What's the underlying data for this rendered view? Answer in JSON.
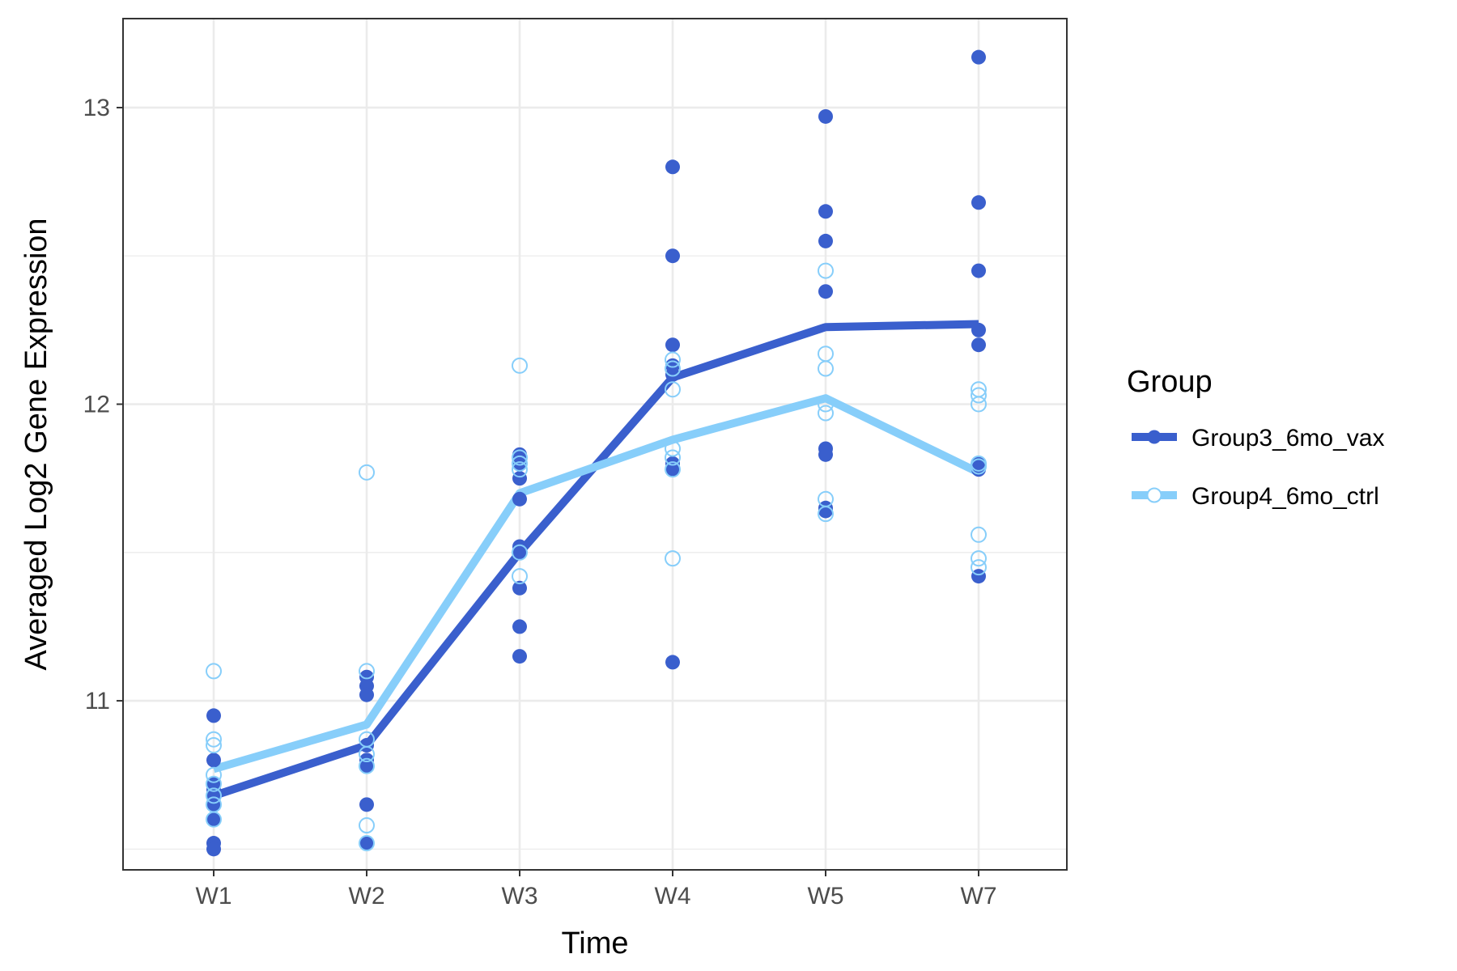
{
  "chart_data": {
    "type": "line",
    "xlabel": "Time",
    "ylabel": "Averaged Log2 Gene Expression",
    "categories": [
      "W1",
      "W2",
      "W3",
      "W4",
      "W5",
      "W7"
    ],
    "ylim": [
      10.43,
      13.3
    ],
    "yticks": [
      11,
      12,
      13
    ],
    "minor_yticks": [
      10.5,
      11.5,
      12.5
    ],
    "grid": true,
    "legend": {
      "title": "Group",
      "position": "right"
    },
    "series": [
      {
        "name": "Group3_6mo_vax",
        "color": "#3a5fcd",
        "marker": "filled-circle",
        "mean": [
          10.68,
          10.85,
          11.5,
          12.09,
          12.26,
          12.27
        ],
        "points": [
          [
            10.95,
            10.8,
            10.72,
            10.7,
            10.68,
            10.65,
            10.6,
            10.6,
            10.52,
            10.5
          ],
          [
            11.08,
            11.05,
            11.02,
            10.85,
            10.8,
            10.78,
            10.65,
            10.52
          ],
          [
            11.83,
            11.8,
            11.75,
            11.68,
            11.52,
            11.5,
            11.38,
            11.25,
            11.15
          ],
          [
            12.8,
            12.5,
            12.2,
            12.13,
            12.1,
            11.8,
            11.78,
            11.13
          ],
          [
            12.97,
            12.65,
            12.55,
            12.38,
            11.85,
            11.83,
            11.65,
            11.64
          ],
          [
            13.17,
            12.68,
            12.45,
            12.25,
            12.2,
            11.8,
            11.78,
            11.42
          ]
        ]
      },
      {
        "name": "Group4_6mo_ctrl",
        "color": "#87cefa",
        "marker": "open-circle",
        "mean": [
          10.77,
          10.92,
          11.7,
          11.88,
          12.02,
          11.77
        ],
        "points": [
          [
            11.1,
            10.87,
            10.85,
            10.75,
            10.72,
            10.68,
            10.65,
            10.6
          ],
          [
            11.77,
            11.1,
            10.87,
            10.82,
            10.78,
            10.58,
            10.52
          ],
          [
            12.13,
            11.82,
            11.8,
            11.78,
            11.5,
            11.42
          ],
          [
            12.15,
            12.12,
            12.05,
            11.85,
            11.82,
            11.78,
            11.48
          ],
          [
            12.45,
            12.17,
            12.12,
            12.0,
            11.97,
            11.68,
            11.63
          ],
          [
            12.05,
            12.03,
            12.0,
            11.8,
            11.79,
            11.56,
            11.48,
            11.45
          ]
        ]
      }
    ]
  }
}
